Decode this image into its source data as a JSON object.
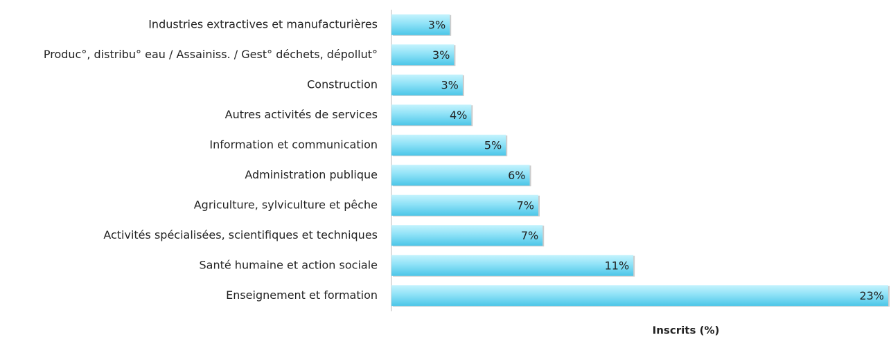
{
  "chart_data": {
    "type": "hbar",
    "x_label": "Inscrits (%)",
    "categories": [
      "Industries extractives et manufacturières",
      "Produc°, distribu° eau / Assainiss. / Gest° déchets, dépollut°",
      "Construction",
      "Autres activités de services",
      "Information et communication",
      "Administration publique",
      "Agriculture, sylviculture et pêche",
      "Activités spécialisées, scientifiques et techniques",
      "Santé humaine et action sociale",
      "Enseignement et formation"
    ],
    "values": [
      2.7,
      2.9,
      3.3,
      3.7,
      5.3,
      6.4,
      6.8,
      7.0,
      11.2,
      23
    ],
    "value_labels": [
      "3%",
      "3%",
      "3%",
      "4%",
      "5%",
      "6%",
      "7%",
      "7%",
      "11%",
      "23%"
    ],
    "color": "#4cc6e8",
    "xlim": [
      0,
      23
    ]
  }
}
